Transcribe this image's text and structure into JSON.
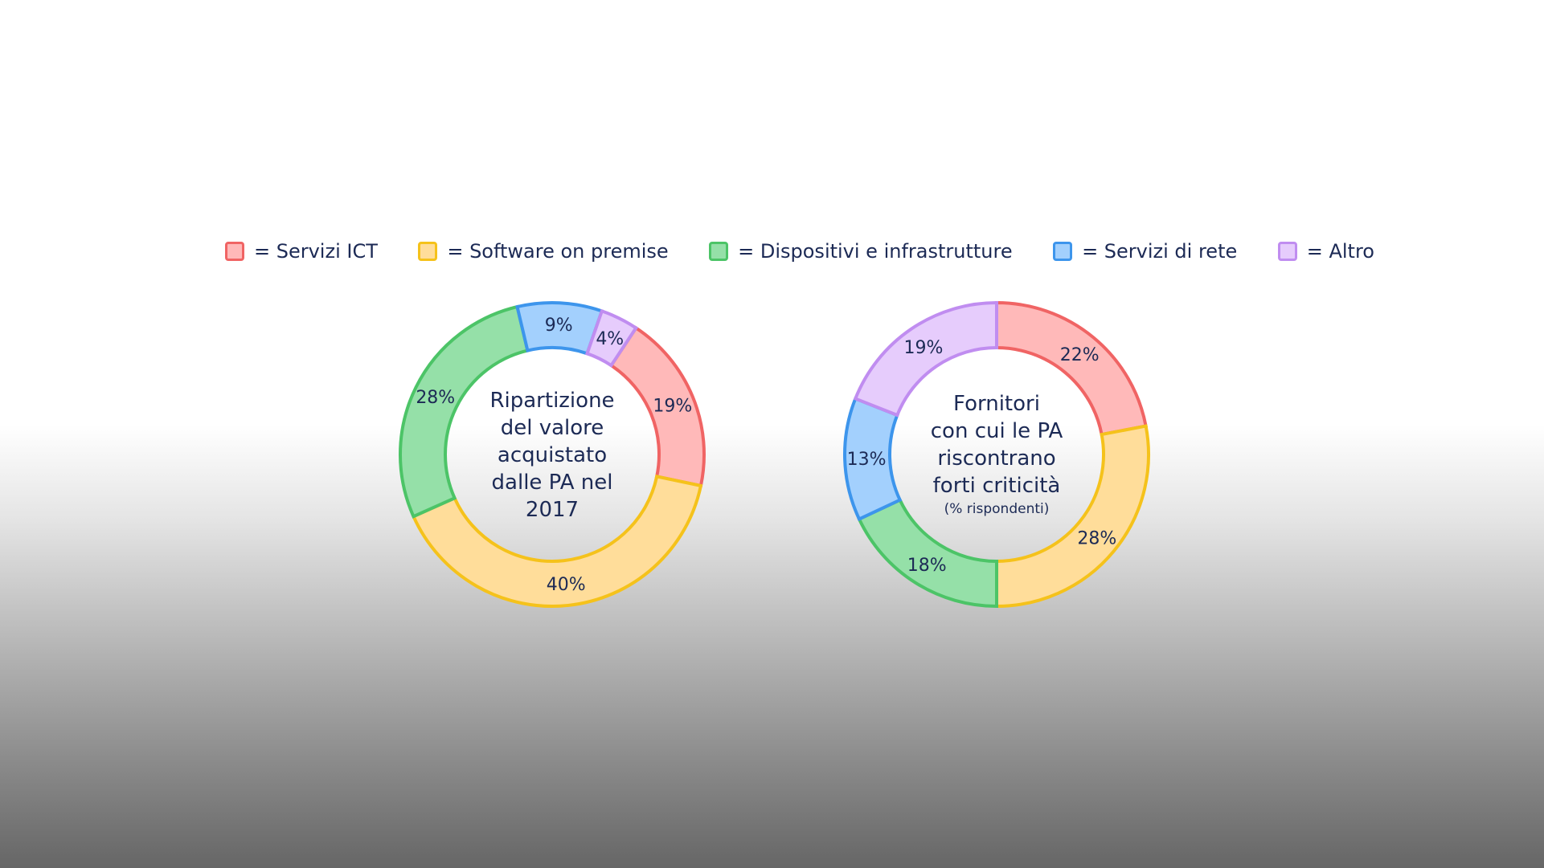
{
  "legend": [
    {
      "label": "= Servizi ICT",
      "fill": "#ffb9b9",
      "stroke": "#f06464"
    },
    {
      "label": "= Software on premise",
      "fill": "#ffdd9a",
      "stroke": "#f5c21b"
    },
    {
      "label": "= Dispositivi e infrastrutture",
      "fill": "#95e0a8",
      "stroke": "#4cc467"
    },
    {
      "label": "= Servizi di rete",
      "fill": "#a3d0fd",
      "stroke": "#3d95ec"
    },
    {
      "label": "= Altro",
      "fill": "#e6ccfc",
      "stroke": "#c08df0"
    }
  ],
  "chart_data": [
    {
      "type": "pie",
      "title_lines": [
        "Ripartizione",
        "del valore",
        "acquistato",
        "dalle PA nel",
        "2017"
      ],
      "subtitle": "",
      "slices": [
        {
          "category": "Servizi ICT",
          "value": 19,
          "label": "19%"
        },
        {
          "category": "Software on premise",
          "value": 40,
          "label": "40%"
        },
        {
          "category": "Dispositivi e infrastrutture",
          "value": 28,
          "label": "28%"
        },
        {
          "category": "Servizi di rete",
          "value": 9,
          "label": "9%"
        },
        {
          "category": "Altro",
          "value": 4,
          "label": "4%"
        }
      ]
    },
    {
      "type": "pie",
      "title_lines": [
        "Fornitori",
        "con cui le PA",
        "riscontrano",
        "forti criticità"
      ],
      "subtitle": "(% rispondenti)",
      "slices": [
        {
          "category": "Servizi ICT",
          "value": 22,
          "label": "22%"
        },
        {
          "category": "Software on premise",
          "value": 28,
          "label": "28%"
        },
        {
          "category": "Dispositivi e infrastrutture",
          "value": 18,
          "label": "18%"
        },
        {
          "category": "Servizi di rete",
          "value": 13,
          "label": "13%"
        },
        {
          "category": "Altro",
          "value": 19,
          "label": "19%"
        }
      ]
    }
  ]
}
